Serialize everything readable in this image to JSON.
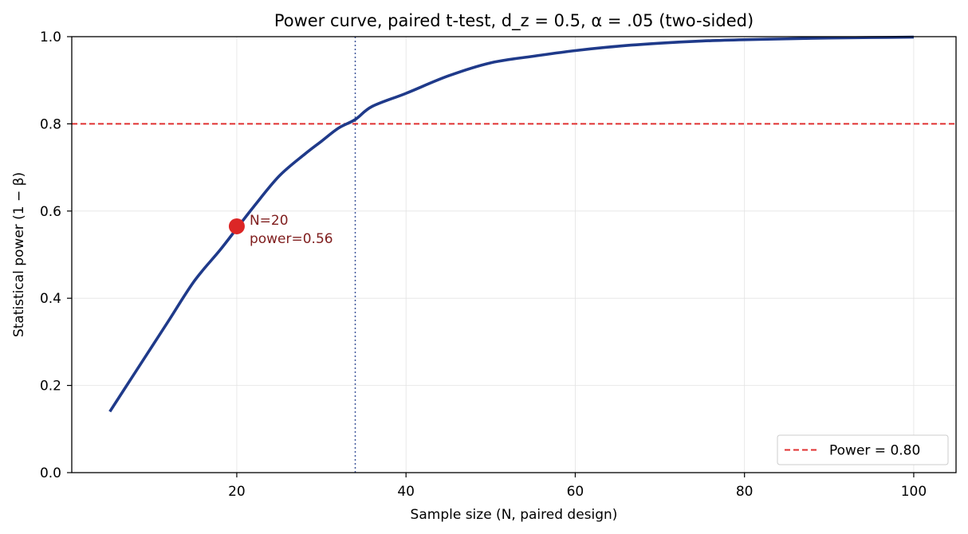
{
  "chart_data": {
    "type": "line",
    "title": "Power curve, paired t-test, d_z = 0.5, α = .05 (two-sided)",
    "xlabel": "Sample size (N, paired design)",
    "ylabel": "Statistical power (1 − β)",
    "xlim": [
      0.5,
      105
    ],
    "ylim": [
      0,
      1.0
    ],
    "x_ticks": [
      20,
      40,
      60,
      80,
      100
    ],
    "y_ticks": [
      0.0,
      0.2,
      0.4,
      0.6,
      0.8,
      1.0
    ],
    "x_tick_labels": [
      "20",
      "40",
      "60",
      "80",
      "100"
    ],
    "y_tick_labels": [
      "0.0",
      "0.2",
      "0.4",
      "0.6",
      "0.8",
      "1.0"
    ],
    "grid": true,
    "series": [
      {
        "color": "#1f3a8a",
        "x": [
          5,
          8,
          10,
          12,
          15,
          18,
          20,
          22,
          25,
          28,
          30,
          32,
          34,
          36,
          40,
          45,
          50,
          55,
          60,
          65,
          70,
          75,
          80,
          85,
          90,
          95,
          100
        ],
        "y": [
          0.14,
          0.23,
          0.29,
          0.35,
          0.44,
          0.51,
          0.56,
          0.61,
          0.68,
          0.73,
          0.76,
          0.79,
          0.81,
          0.84,
          0.87,
          0.91,
          0.94,
          0.955,
          0.968,
          0.978,
          0.985,
          0.99,
          0.993,
          0.995,
          0.997,
          0.998,
          0.999
        ]
      }
    ],
    "reference_line": {
      "type": "horizontal",
      "y": 0.8,
      "color": "#e03131",
      "style": "dashed",
      "legend_label": "Power = 0.80"
    },
    "vertical_line": {
      "x": 34,
      "color": "#1f3a8a",
      "style": "dotted"
    },
    "highlight_point": {
      "x": 20,
      "y": 0.565,
      "color": "#dc2626",
      "label_line1": "N=20",
      "label_line2": "power=0.56",
      "label_color": "#7f1d1d"
    },
    "legend_position": "bottom-right"
  }
}
